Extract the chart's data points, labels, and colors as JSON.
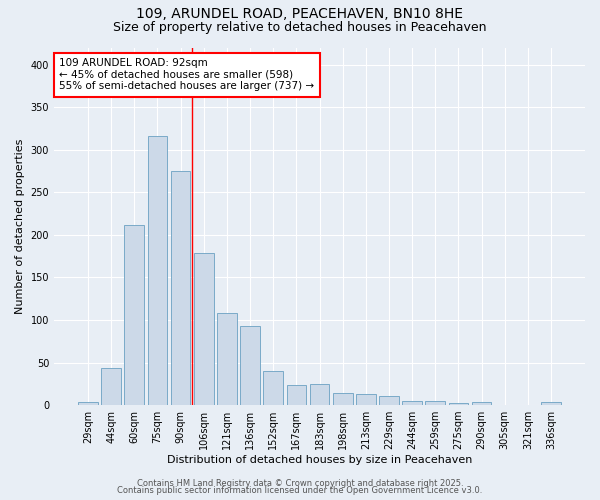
{
  "title": "109, ARUNDEL ROAD, PEACEHAVEN, BN10 8HE",
  "subtitle": "Size of property relative to detached houses in Peacehaven",
  "xlabel": "Distribution of detached houses by size in Peacehaven",
  "ylabel": "Number of detached properties",
  "bar_color": "#ccd9e8",
  "bar_edge_color": "#7aaac8",
  "categories": [
    "29sqm",
    "44sqm",
    "60sqm",
    "75sqm",
    "90sqm",
    "106sqm",
    "121sqm",
    "136sqm",
    "152sqm",
    "167sqm",
    "183sqm",
    "198sqm",
    "213sqm",
    "229sqm",
    "244sqm",
    "259sqm",
    "275sqm",
    "290sqm",
    "305sqm",
    "321sqm",
    "336sqm"
  ],
  "values": [
    4,
    44,
    211,
    316,
    275,
    179,
    108,
    93,
    40,
    24,
    25,
    14,
    13,
    11,
    5,
    5,
    3,
    4,
    0,
    0,
    4
  ],
  "red_line_x": 4.5,
  "annotation_text": "109 ARUNDEL ROAD: 92sqm\n← 45% of detached houses are smaller (598)\n55% of semi-detached houses are larger (737) →",
  "annotation_box_color": "white",
  "annotation_border_color": "red",
  "ylim": [
    0,
    420
  ],
  "yticks": [
    0,
    50,
    100,
    150,
    200,
    250,
    300,
    350,
    400
  ],
  "footer1": "Contains HM Land Registry data © Crown copyright and database right 2025.",
  "footer2": "Contains public sector information licensed under the Open Government Licence v3.0.",
  "background_color": "#e8eef5",
  "grid_color": "white",
  "title_fontsize": 10,
  "subtitle_fontsize": 9,
  "tick_fontsize": 7,
  "ylabel_fontsize": 8,
  "xlabel_fontsize": 8,
  "annotation_fontsize": 7.5,
  "footer_fontsize": 6
}
